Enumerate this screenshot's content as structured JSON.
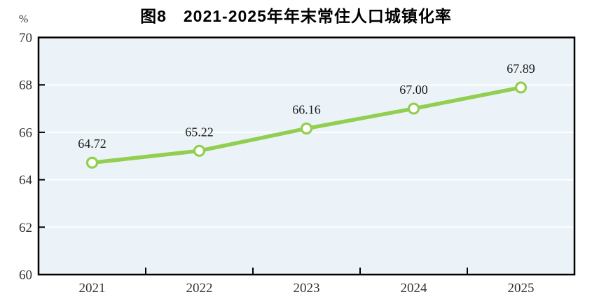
{
  "title": "图8　2021-2025年年末常住人口城镇化率",
  "unit_label": "%",
  "chart_data": {
    "type": "line",
    "title": "图8　2021-2025年年末常住人口城镇化率",
    "xlabel": "",
    "ylabel": "%",
    "categories": [
      "2021",
      "2022",
      "2023",
      "2024",
      "2025"
    ],
    "values": [
      64.72,
      65.22,
      66.16,
      67.0,
      67.89
    ],
    "data_labels": [
      "64.72",
      "65.22",
      "66.16",
      "67.00",
      "67.89"
    ],
    "ylim": [
      60,
      70
    ],
    "y_ticks": [
      60,
      62,
      64,
      66,
      68,
      70
    ],
    "grid": "horizontal-only",
    "legend": "none",
    "colors": {
      "line": "#92CE50",
      "marker_fill": "#FFFFFF",
      "marker_stroke": "#92CE50",
      "plot_background": "#ECF3F8",
      "plot_border": "#000000",
      "gridline": "#FFFFFF",
      "axis_text": "#333333",
      "title_text": "#000000"
    }
  }
}
